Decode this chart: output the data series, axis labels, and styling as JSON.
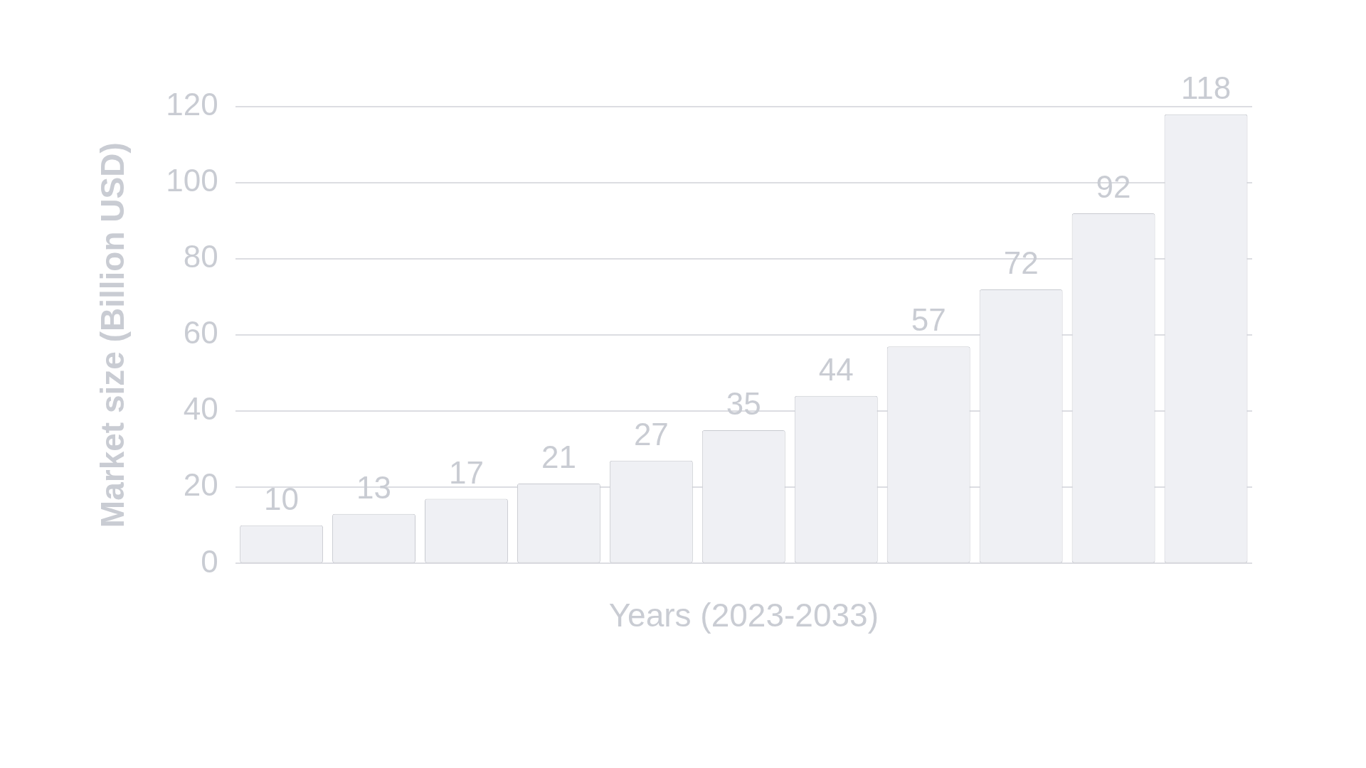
{
  "chart_data": {
    "type": "bar",
    "xlabel": "Years (2023-2033)",
    "ylabel": "Market size (Billion USD)",
    "categories": [
      null,
      null,
      null,
      null,
      null,
      null,
      null,
      null,
      null,
      null,
      null
    ],
    "values": [
      10,
      13,
      17,
      21,
      27,
      35,
      44,
      57,
      72,
      92,
      118
    ],
    "color": "#eff0f4",
    "ylim": [
      0,
      120
    ],
    "yticks": [
      0,
      20,
      40,
      60,
      80,
      100,
      120
    ],
    "grid": "y",
    "data_labels": true
  }
}
